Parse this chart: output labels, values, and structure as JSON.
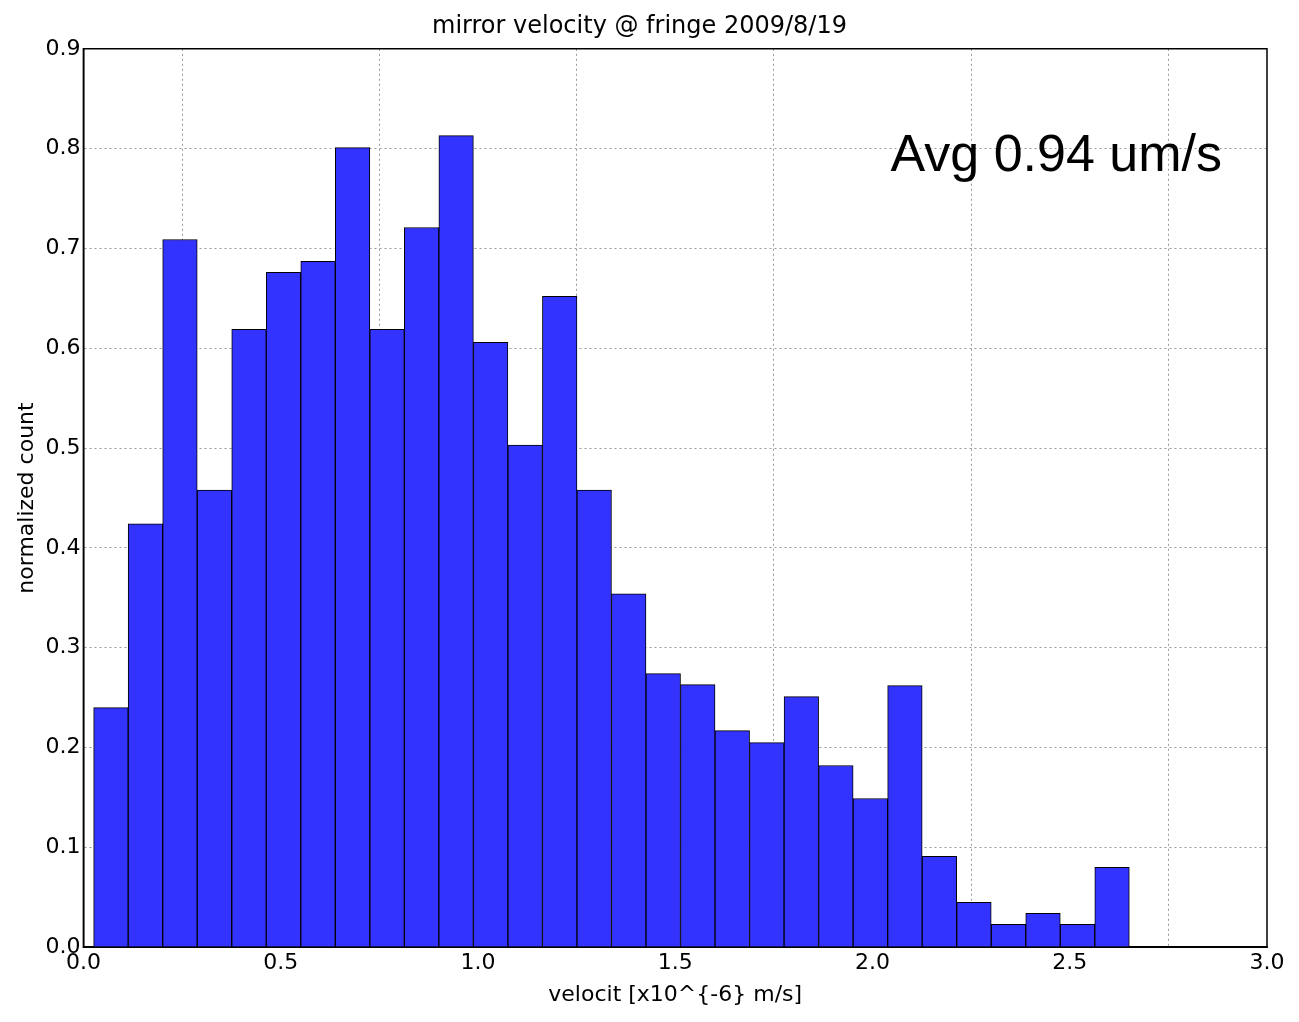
{
  "chart_data": {
    "type": "histogram",
    "title": "mirror velocity @ fringe 2009/8/19",
    "xlabel": "velocit [x10^{-6} m/s]",
    "ylabel": "normalized count",
    "bins": [
      0.026,
      0.1135,
      0.201,
      0.2885,
      0.376,
      0.4635,
      0.551,
      0.6385,
      0.726,
      0.8135,
      0.901,
      0.9885,
      1.076,
      1.1635,
      1.251,
      1.3385,
      1.426,
      1.5135,
      1.601,
      1.6885,
      1.776,
      1.8635,
      1.951,
      2.0385,
      2.126,
      2.2135,
      2.301,
      2.3885,
      2.476,
      2.5635,
      2.651
    ],
    "values": [
      0.24,
      0.424,
      0.709,
      0.458,
      0.619,
      0.676,
      0.687,
      0.801,
      0.619,
      0.721,
      0.813,
      0.606,
      0.503,
      0.652,
      0.458,
      0.354,
      0.274,
      0.263,
      0.217,
      0.205,
      0.251,
      0.182,
      0.149,
      0.262,
      0.091,
      0.045,
      0.023,
      0.034,
      0.023,
      0.08
    ],
    "color": "#3333ff",
    "xlim": [
      0,
      3.0
    ],
    "xticks": [
      {
        "value": 0,
        "label": "0.0"
      },
      0.5,
      {
        "value": 1,
        "label": "1.0"
      },
      1.5,
      {
        "value": 2,
        "label": "2.0"
      },
      2.5,
      {
        "value": 3,
        "label": "3.0"
      }
    ],
    "ylim": [
      0,
      0.9
    ],
    "yticks": [
      {
        "value": 0,
        "label": "0.0"
      },
      0.1,
      0.2,
      0.3,
      0.4,
      0.5,
      0.6,
      0.7,
      0.8,
      0.9
    ],
    "grid": true,
    "legend": false,
    "annotations": [
      "Avg 0.94 um/s"
    ]
  }
}
